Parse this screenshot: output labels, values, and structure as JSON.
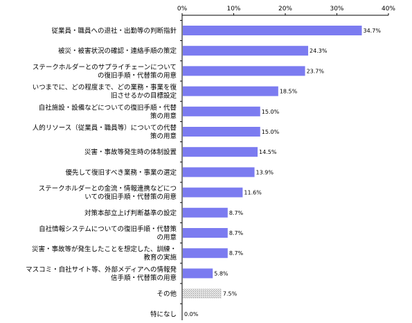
{
  "chart_data": {
    "type": "bar",
    "orientation": "horizontal",
    "title": "",
    "xlabel": "",
    "ylabel": "",
    "xlim": [
      0,
      40
    ],
    "x_ticks": [
      0,
      10,
      20,
      30,
      40
    ],
    "x_tick_labels": [
      "0%",
      "10%",
      "20%",
      "30%",
      "40%"
    ],
    "axis_position": "top",
    "grid": false,
    "legend": "none",
    "categories": [
      [
        "従業員・職員への退社・出勤等の判断指針"
      ],
      [
        "被災・被害状況の確認・連絡手順の策定"
      ],
      [
        "ステークホルダーとのサプライチェーンについて",
        "の復旧手順・代替策の用意"
      ],
      [
        "いつまでに、どの程度まで、どの業務・事業を復",
        "旧させるかの目標設定"
      ],
      [
        "自社施設・設備などについての復旧手順・代替",
        "策の用意"
      ],
      [
        "人的リソース（従業員・職員等）についての代替",
        "策の用意"
      ],
      [
        "災害・事故等発生時の体制設置"
      ],
      [
        "優先して復旧すべき業務・事業の選定"
      ],
      [
        "ステークホルダーとの金流・情報連携などにつ",
        "いての復旧手順・代替策の用意"
      ],
      [
        "対策本部立上げ判断基準の設定"
      ],
      [
        "自社情報システムについての復旧手順・代替策",
        "の用意"
      ],
      [
        "災害・事故等が発生したことを想定した、訓練・",
        "教育の実施"
      ],
      [
        "マスコミ・自社サイト等、外部メディアへの情報発",
        "信手順・代替策の用意"
      ],
      [
        "その他"
      ],
      [
        "特になし"
      ]
    ],
    "values": [
      34.7,
      24.3,
      23.7,
      18.5,
      15.0,
      15.0,
      14.5,
      13.9,
      11.6,
      8.7,
      8.7,
      8.7,
      5.8,
      7.5,
      0.0
    ],
    "value_labels": [
      "34.7%",
      "24.3%",
      "23.7%",
      "18.5%",
      "15.0%",
      "15.0%",
      "14.5%",
      "13.9%",
      "11.6%",
      "8.7%",
      "8.7%",
      "8.7%",
      "5.8%",
      "7.5%",
      "0.0%"
    ],
    "bar_styles": [
      "solid",
      "solid",
      "solid",
      "solid",
      "solid",
      "solid",
      "solid",
      "solid",
      "solid",
      "solid",
      "solid",
      "solid",
      "solid",
      "hatched",
      "solid"
    ],
    "colors": {
      "bar": "#7b7bf0",
      "bar_other": "#c8c8c8",
      "axis": "#000000",
      "background": "#ffffff"
    }
  }
}
